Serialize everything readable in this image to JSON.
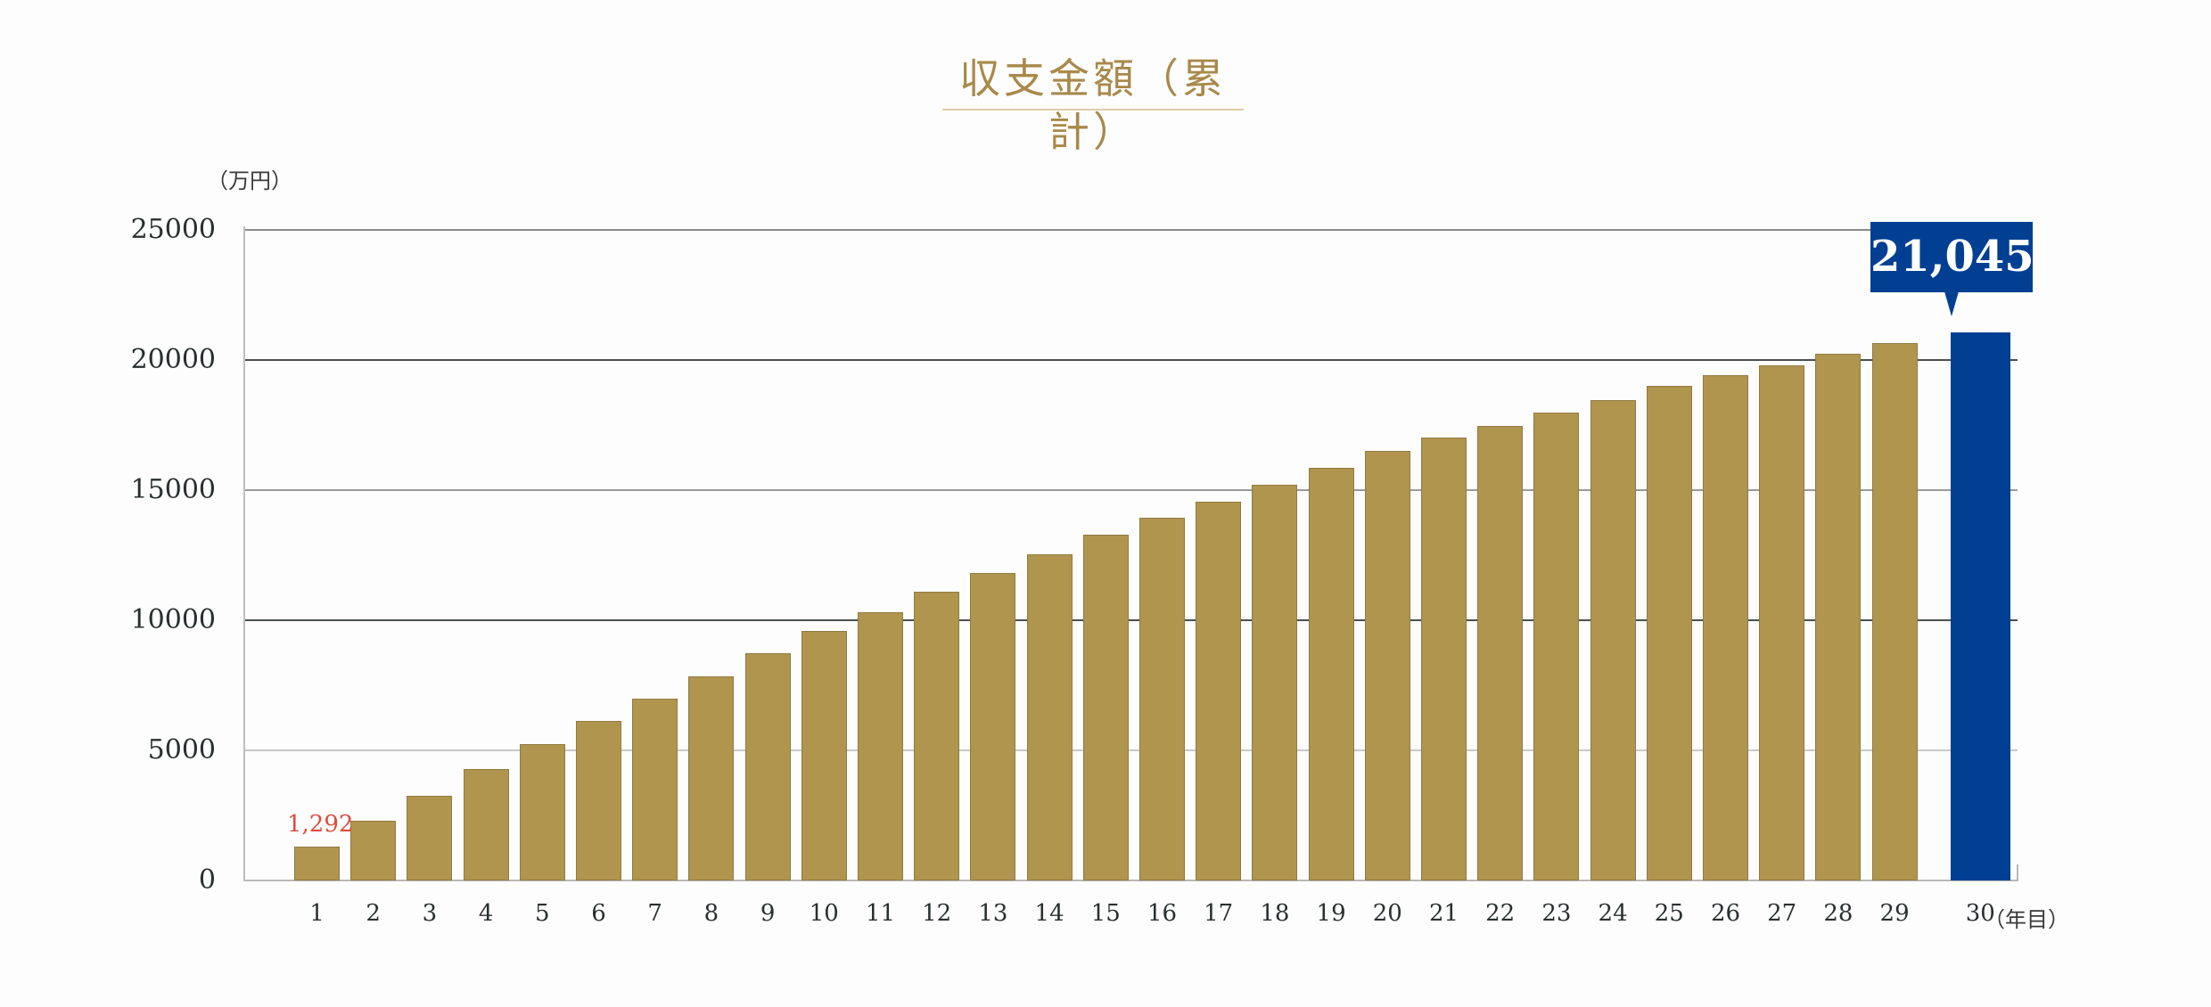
{
  "chart_data": {
    "type": "bar",
    "title": "収支金額（累計）",
    "xlabel": "（年目）",
    "ylabel": "（万円）",
    "ylim": [
      0,
      25000
    ],
    "yticks": [
      0,
      5000,
      10000,
      15000,
      20000,
      25000
    ],
    "grid": true,
    "legend": null,
    "categories": [
      "1",
      "2",
      "3",
      "4",
      "5",
      "6",
      "7",
      "8",
      "9",
      "10",
      "11",
      "12",
      "13",
      "14",
      "15",
      "16",
      "17",
      "18",
      "19",
      "20",
      "21",
      "22",
      "23",
      "24",
      "25",
      "26",
      "27",
      "28",
      "29",
      "30"
    ],
    "values": [
      1292,
      2280,
      3270,
      4280,
      5240,
      6130,
      6990,
      7840,
      8730,
      9590,
      10310,
      11100,
      11800,
      12550,
      13300,
      13940,
      14560,
      15210,
      15860,
      16500,
      17010,
      17480,
      17990,
      18470,
      19010,
      19420,
      19800,
      20240,
      20650,
      21045
    ],
    "annotations": [
      {
        "category": "1",
        "text": "1,292",
        "color": "#e04b3f"
      },
      {
        "category": "30",
        "text": "21,045",
        "style": "callout",
        "color": "#013f92"
      }
    ],
    "colors": {
      "bar": "#b0954f",
      "highlight": "#013f92",
      "title": "#a8894a"
    }
  },
  "header": {
    "title": "収支金額（累計）"
  },
  "axes": {
    "y_unit": "（万円）",
    "x_unit": "（年目）",
    "y_ticks": [
      "0",
      "5000",
      "10000",
      "15000",
      "20000",
      "25000"
    ]
  },
  "labels": {
    "first": "1,292",
    "last": "21,045"
  }
}
